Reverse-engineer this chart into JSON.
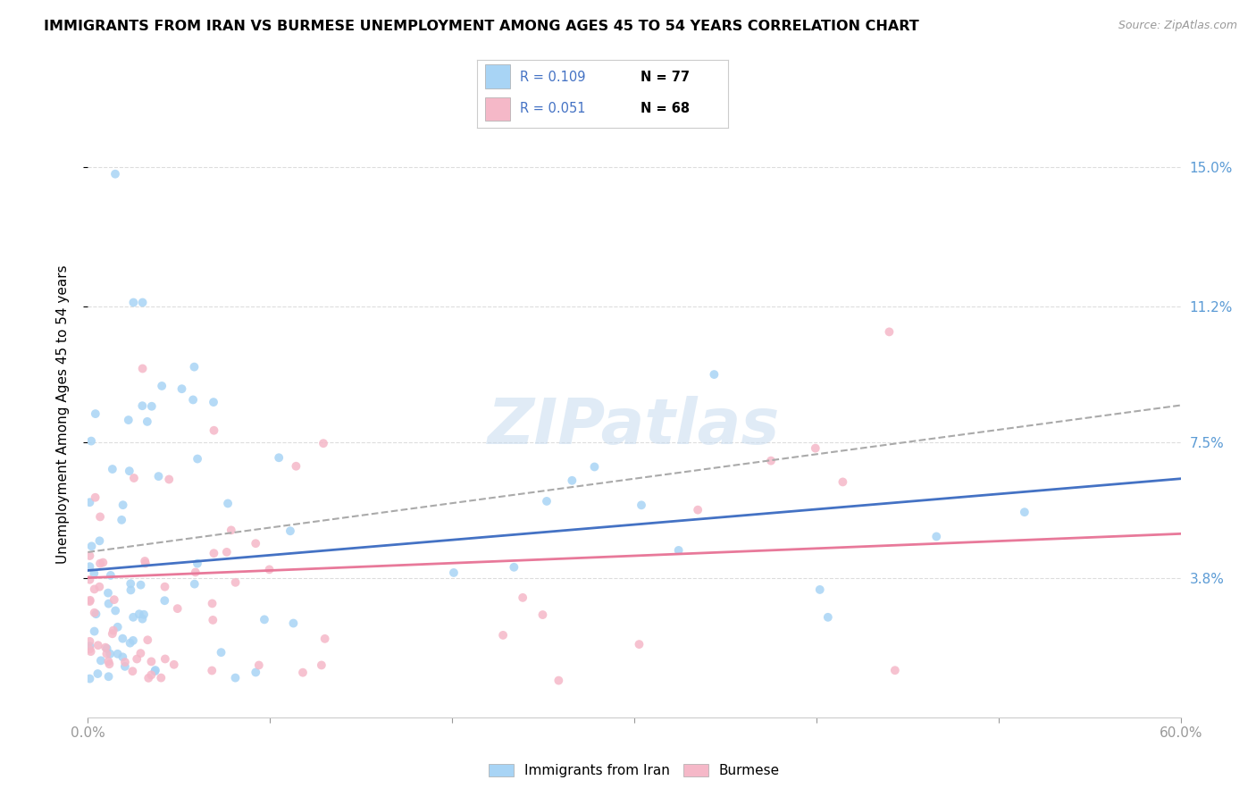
{
  "title": "IMMIGRANTS FROM IRAN VS BURMESE UNEMPLOYMENT AMONG AGES 45 TO 54 YEARS CORRELATION CHART",
  "source": "Source: ZipAtlas.com",
  "ylabel": "Unemployment Among Ages 45 to 54 years",
  "xmin": 0.0,
  "xmax": 0.6,
  "ymin": 0.0,
  "ymax": 0.165,
  "ytick_values": [
    0.038,
    0.075,
    0.112,
    0.15
  ],
  "ytick_labels": [
    "3.8%",
    "7.5%",
    "11.2%",
    "15.0%"
  ],
  "xtick_values": [
    0.0,
    0.1,
    0.2,
    0.3,
    0.4,
    0.5,
    0.6
  ],
  "xtick_labels": [
    "0.0%",
    "",
    "",
    "",
    "",
    "",
    "60.0%"
  ],
  "legend_r1": "R = 0.109",
  "legend_n1": "N = 77",
  "legend_r2": "R = 0.051",
  "legend_n2": "N = 68",
  "color_iran": "#A8D4F5",
  "color_burmese": "#F5B8C8",
  "color_line_iran": "#4472C4",
  "color_line_burmese": "#E8799A",
  "color_trend_dashed": "#AAAAAA",
  "color_right_axis": "#5B9BD5",
  "color_text_blue": "#4472C4",
  "color_text_pink": "#E8799A",
  "watermark_color": "#C8DCF0",
  "background_color": "#FFFFFF",
  "grid_color": "#DDDDDD",
  "title_fontsize": 11.5,
  "source_fontsize": 9,
  "tick_fontsize": 11,
  "ylabel_fontsize": 11
}
